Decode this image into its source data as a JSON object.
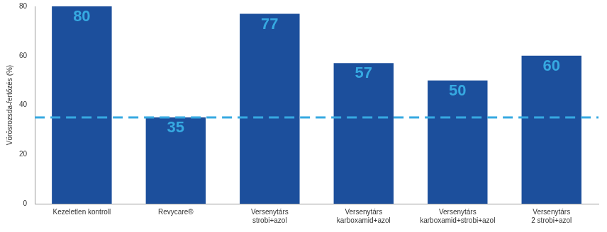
{
  "chart_data": {
    "type": "bar",
    "y_label": "Vörösrozsda-fertőzés (%)",
    "categories": [
      [
        "Kezeletlen kontroll"
      ],
      [
        "Revycare®"
      ],
      [
        "Versenytárs",
        "strobi+azol"
      ],
      [
        "Versenytárs",
        "karboxamid+azol"
      ],
      [
        "Versenytárs",
        "karboxamid+strobi+azol"
      ],
      [
        "Versenytárs",
        "2 strobi+azol"
      ]
    ],
    "values": [
      80,
      35,
      77,
      57,
      50,
      60
    ],
    "color": "#1c4f9c",
    "data_labels": true,
    "reference_line": 35,
    "ylim": [
      0,
      80
    ],
    "yticks": [
      0,
      20,
      40,
      60,
      80
    ],
    "grid": false
  }
}
